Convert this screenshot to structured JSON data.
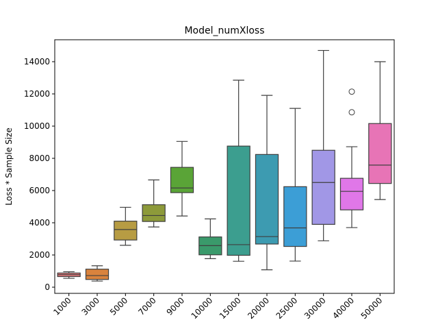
{
  "chart_data": {
    "type": "box",
    "title": "Model_numXloss",
    "xlabel": "",
    "ylabel": "Loss * Sample Size",
    "ylim": [
      -300,
      14950
    ],
    "yticks": [
      0,
      2000,
      4000,
      6000,
      8000,
      10000,
      12000,
      14000
    ],
    "ytick_labels": [
      "0",
      "2000",
      "4000",
      "6000",
      "8000",
      "10000",
      "12000",
      "14000"
    ],
    "grid": false,
    "categories": [
      "1000",
      "3000",
      "5000",
      "7000",
      "9000",
      "10000",
      "15000",
      "20000",
      "25000",
      "30000",
      "40000",
      "50000"
    ],
    "boxes": [
      {
        "category": "1000",
        "whisker_low": 550,
        "q1": 660,
        "median": 780,
        "q3": 880,
        "whisker_high": 960,
        "outliers": []
      },
      {
        "category": "3000",
        "whisker_low": 380,
        "q1": 480,
        "median": 720,
        "q3": 1120,
        "whisker_high": 1330,
        "outliers": []
      },
      {
        "category": "5000",
        "whisker_low": 2600,
        "q1": 2930,
        "median": 3580,
        "q3": 4100,
        "whisker_high": 4960,
        "outliers": []
      },
      {
        "category": "7000",
        "whisker_low": 3740,
        "q1": 4080,
        "median": 4450,
        "q3": 5120,
        "whisker_high": 6660,
        "outliers": []
      },
      {
        "category": "9000",
        "whisker_low": 4420,
        "q1": 5870,
        "median": 6160,
        "q3": 7440,
        "whisker_high": 9050,
        "outliers": []
      },
      {
        "category": "10000",
        "whisker_low": 1770,
        "q1": 2010,
        "median": 2580,
        "q3": 3120,
        "whisker_high": 4240,
        "outliers": []
      },
      {
        "category": "15000",
        "whisker_low": 1610,
        "q1": 1980,
        "median": 2640,
        "q3": 8760,
        "whisker_high": 12850,
        "outliers": []
      },
      {
        "category": "20000",
        "whisker_low": 1080,
        "q1": 2680,
        "median": 3140,
        "q3": 8240,
        "whisker_high": 11910,
        "outliers": []
      },
      {
        "category": "25000",
        "whisker_low": 1620,
        "q1": 2530,
        "median": 3680,
        "q3": 6240,
        "whisker_high": 11100,
        "outliers": []
      },
      {
        "category": "30000",
        "whisker_low": 2880,
        "q1": 3900,
        "median": 6500,
        "q3": 8500,
        "whisker_high": 14700,
        "outliers": []
      },
      {
        "category": "40000",
        "whisker_low": 3700,
        "q1": 4800,
        "median": 5950,
        "q3": 6760,
        "whisker_high": 8720,
        "outliers": [
          10860,
          12140
        ]
      },
      {
        "category": "50000",
        "whisker_low": 5440,
        "q1": 6440,
        "median": 7580,
        "q3": 10160,
        "whisker_high": 14000,
        "outliers": []
      }
    ],
    "colors": [
      "#e1797b",
      "#d9833d",
      "#b79c43",
      "#8d9a3a",
      "#5aa437",
      "#3a9a6b",
      "#3c9e8f",
      "#3d9bb1",
      "#3c9ed6",
      "#a197e6",
      "#e077e8",
      "#e774b6"
    ]
  }
}
